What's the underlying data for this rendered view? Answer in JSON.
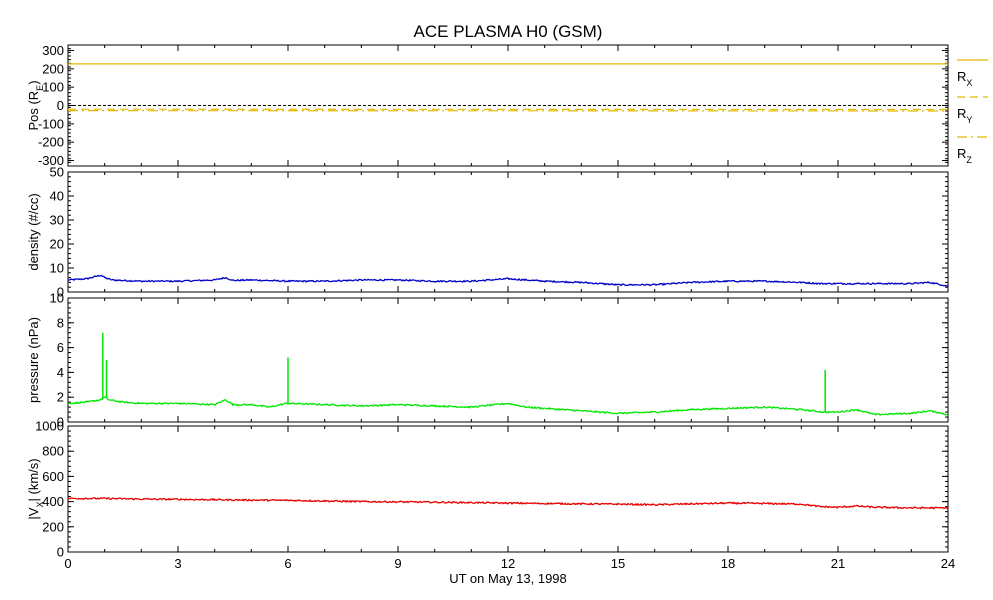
{
  "chart_data": {
    "title": "ACE PLASMA H0 (GSM)",
    "xlabel": "UT on May 13, 1998",
    "xlim": [
      0,
      24
    ],
    "xticks": [
      "0",
      "3",
      "6",
      "9",
      "12",
      "15",
      "18",
      "21",
      "24"
    ],
    "panels": [
      {
        "id": "pos",
        "type": "line",
        "ylabel": {
          "main": "Pos (R",
          "sub": "E",
          "end": ")"
        },
        "ylim": [
          -330,
          330
        ],
        "yticks": [
          300,
          200,
          100,
          0,
          -100,
          -200,
          -300
        ],
        "zero_line": true,
        "series": [
          {
            "name": {
              "main": "R",
              "sub": "X"
            },
            "color": "#e6b800",
            "dash": "none",
            "x": [
              0,
              24
            ],
            "y": [
              227,
              227
            ]
          },
          {
            "name": {
              "main": "R",
              "sub": "Y"
            },
            "color": "#e6b800",
            "dash": "dashed",
            "x": [
              0,
              24
            ],
            "y": [
              -20,
              -22
            ]
          },
          {
            "name": {
              "main": "R",
              "sub": "Z"
            },
            "color": "#e6b800",
            "dash": "dashdot",
            "x": [
              0,
              24
            ],
            "y": [
              -28,
              -30
            ]
          }
        ]
      },
      {
        "id": "density",
        "type": "line",
        "ylabel": {
          "main": "density (#/cc)"
        },
        "ylim": [
          0,
          50
        ],
        "yticks": [
          50,
          40,
          30,
          20,
          10,
          0
        ],
        "series": [
          {
            "color": "#0000c8",
            "x": [
              0,
              0.5,
              0.9,
              1.0,
              1.2,
              2,
              3,
              4,
              4.3,
              4.5,
              5,
              6,
              7,
              8,
              9,
              10,
              11,
              12,
              12.5,
              13,
              14,
              15,
              16,
              17,
              18,
              19,
              20,
              20.5,
              21,
              22,
              23,
              23.5,
              24
            ],
            "y": [
              5,
              5.5,
              7,
              6,
              5,
              4.5,
              4.5,
              5,
              6,
              4.8,
              5,
              4.5,
              4.5,
              5,
              5,
              4.5,
              4.5,
              5.5,
              5,
              4.5,
              4,
              3,
              3,
              4,
              4.5,
              4.5,
              4,
              3.5,
              3.5,
              3.5,
              3.5,
              4,
              2.5
            ]
          }
        ]
      },
      {
        "id": "pressure",
        "type": "line",
        "ylabel": {
          "main": "pressure (nPa)"
        },
        "ylim": [
          0,
          10
        ],
        "yticks": [
          10,
          8,
          6,
          4,
          2,
          0
        ],
        "series": [
          {
            "color": "#00e600",
            "x": [
              0,
              0.5,
              0.9,
              0.95,
              1.0,
              1.05,
              1.1,
              1.5,
              2,
              3,
              4,
              4.3,
              4.5,
              5,
              5.5,
              5.95,
              6.0,
              6.05,
              7,
              8,
              9,
              10,
              11,
              12,
              12.5,
              13,
              14,
              15,
              16,
              17,
              18,
              19,
              20,
              20.6,
              20.65,
              20.7,
              21,
              21.5,
              22,
              23,
              23.5,
              24
            ],
            "y": [
              1.5,
              1.6,
              1.8,
              7.2,
              2.0,
              5.0,
              1.8,
              1.6,
              1.5,
              1.5,
              1.4,
              1.8,
              1.4,
              1.4,
              1.2,
              1.5,
              5.2,
              1.5,
              1.4,
              1.3,
              1.4,
              1.3,
              1.2,
              1.5,
              1.2,
              1.1,
              0.9,
              0.7,
              0.8,
              1.0,
              1.1,
              1.2,
              1.0,
              0.8,
              4.2,
              0.8,
              0.8,
              1.0,
              0.6,
              0.7,
              0.9,
              0.6
            ]
          }
        ]
      },
      {
        "id": "vx",
        "type": "line",
        "ylabel": {
          "main": "|V",
          "sub": "X",
          "end": "| (km/s)"
        },
        "ylim": [
          0,
          1000
        ],
        "yticks": [
          1000,
          800,
          600,
          400,
          200,
          0
        ],
        "series": [
          {
            "color": "#e60000",
            "x": [
              0,
              1,
              2,
              3,
              4,
              5,
              6,
              7,
              8,
              9,
              10,
              11,
              12,
              13,
              14,
              15,
              16,
              17,
              18,
              19,
              20,
              20.5,
              21,
              21.5,
              22,
              23,
              24
            ],
            "y": [
              425,
              425,
              420,
              418,
              415,
              412,
              410,
              405,
              400,
              398,
              395,
              392,
              388,
              385,
              382,
              380,
              375,
              382,
              388,
              385,
              380,
              360,
              355,
              365,
              355,
              350,
              350
            ]
          }
        ]
      }
    ]
  }
}
